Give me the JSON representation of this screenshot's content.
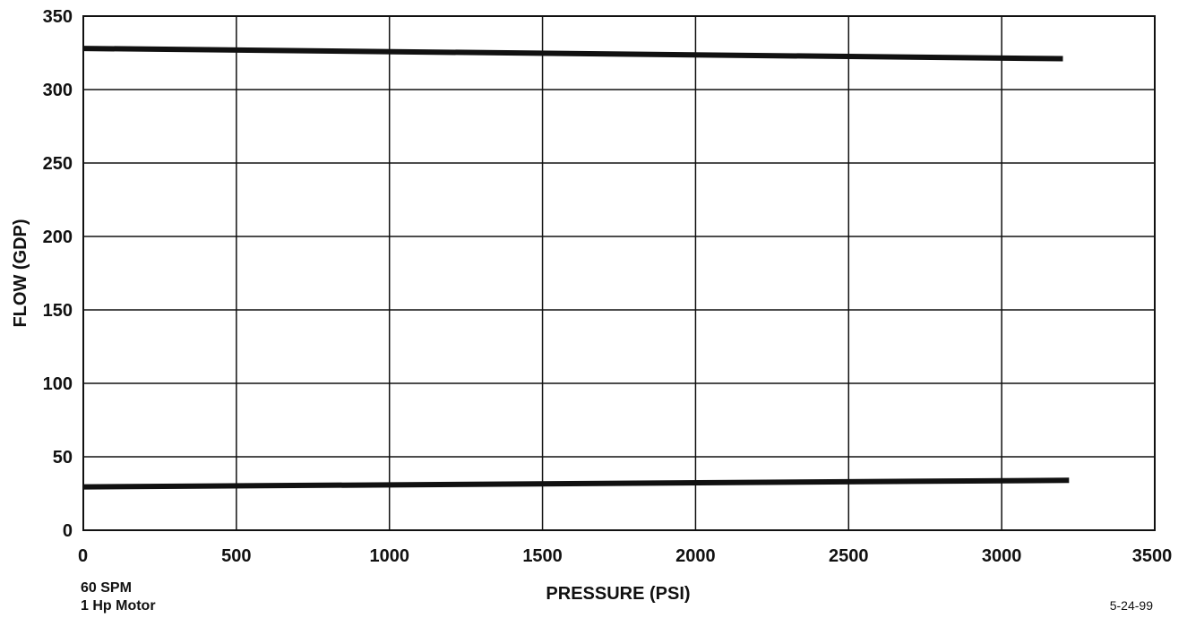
{
  "chart_data": {
    "type": "line",
    "title": "",
    "xlabel": "PRESSURE (PSI)",
    "ylabel": "FLOW (GDP)",
    "xlim": [
      0,
      3500
    ],
    "ylim": [
      0,
      350
    ],
    "x_ticks": [
      0,
      500,
      1000,
      1500,
      2000,
      2500,
      3000,
      3500
    ],
    "y_ticks": [
      0,
      50,
      100,
      150,
      200,
      250,
      300,
      350
    ],
    "grid": true,
    "legend": "none",
    "series": [
      {
        "x": [
          0,
          3200
        ],
        "y": [
          328,
          321
        ]
      },
      {
        "x": [
          0,
          3220
        ],
        "y": [
          29.5,
          34
        ]
      }
    ],
    "notes": [
      "60 SPM",
      "1 Hp Motor"
    ],
    "date": "5-24-99"
  },
  "colors": {
    "line": "#111111",
    "grid": "#111111",
    "background": "#ffffff"
  }
}
